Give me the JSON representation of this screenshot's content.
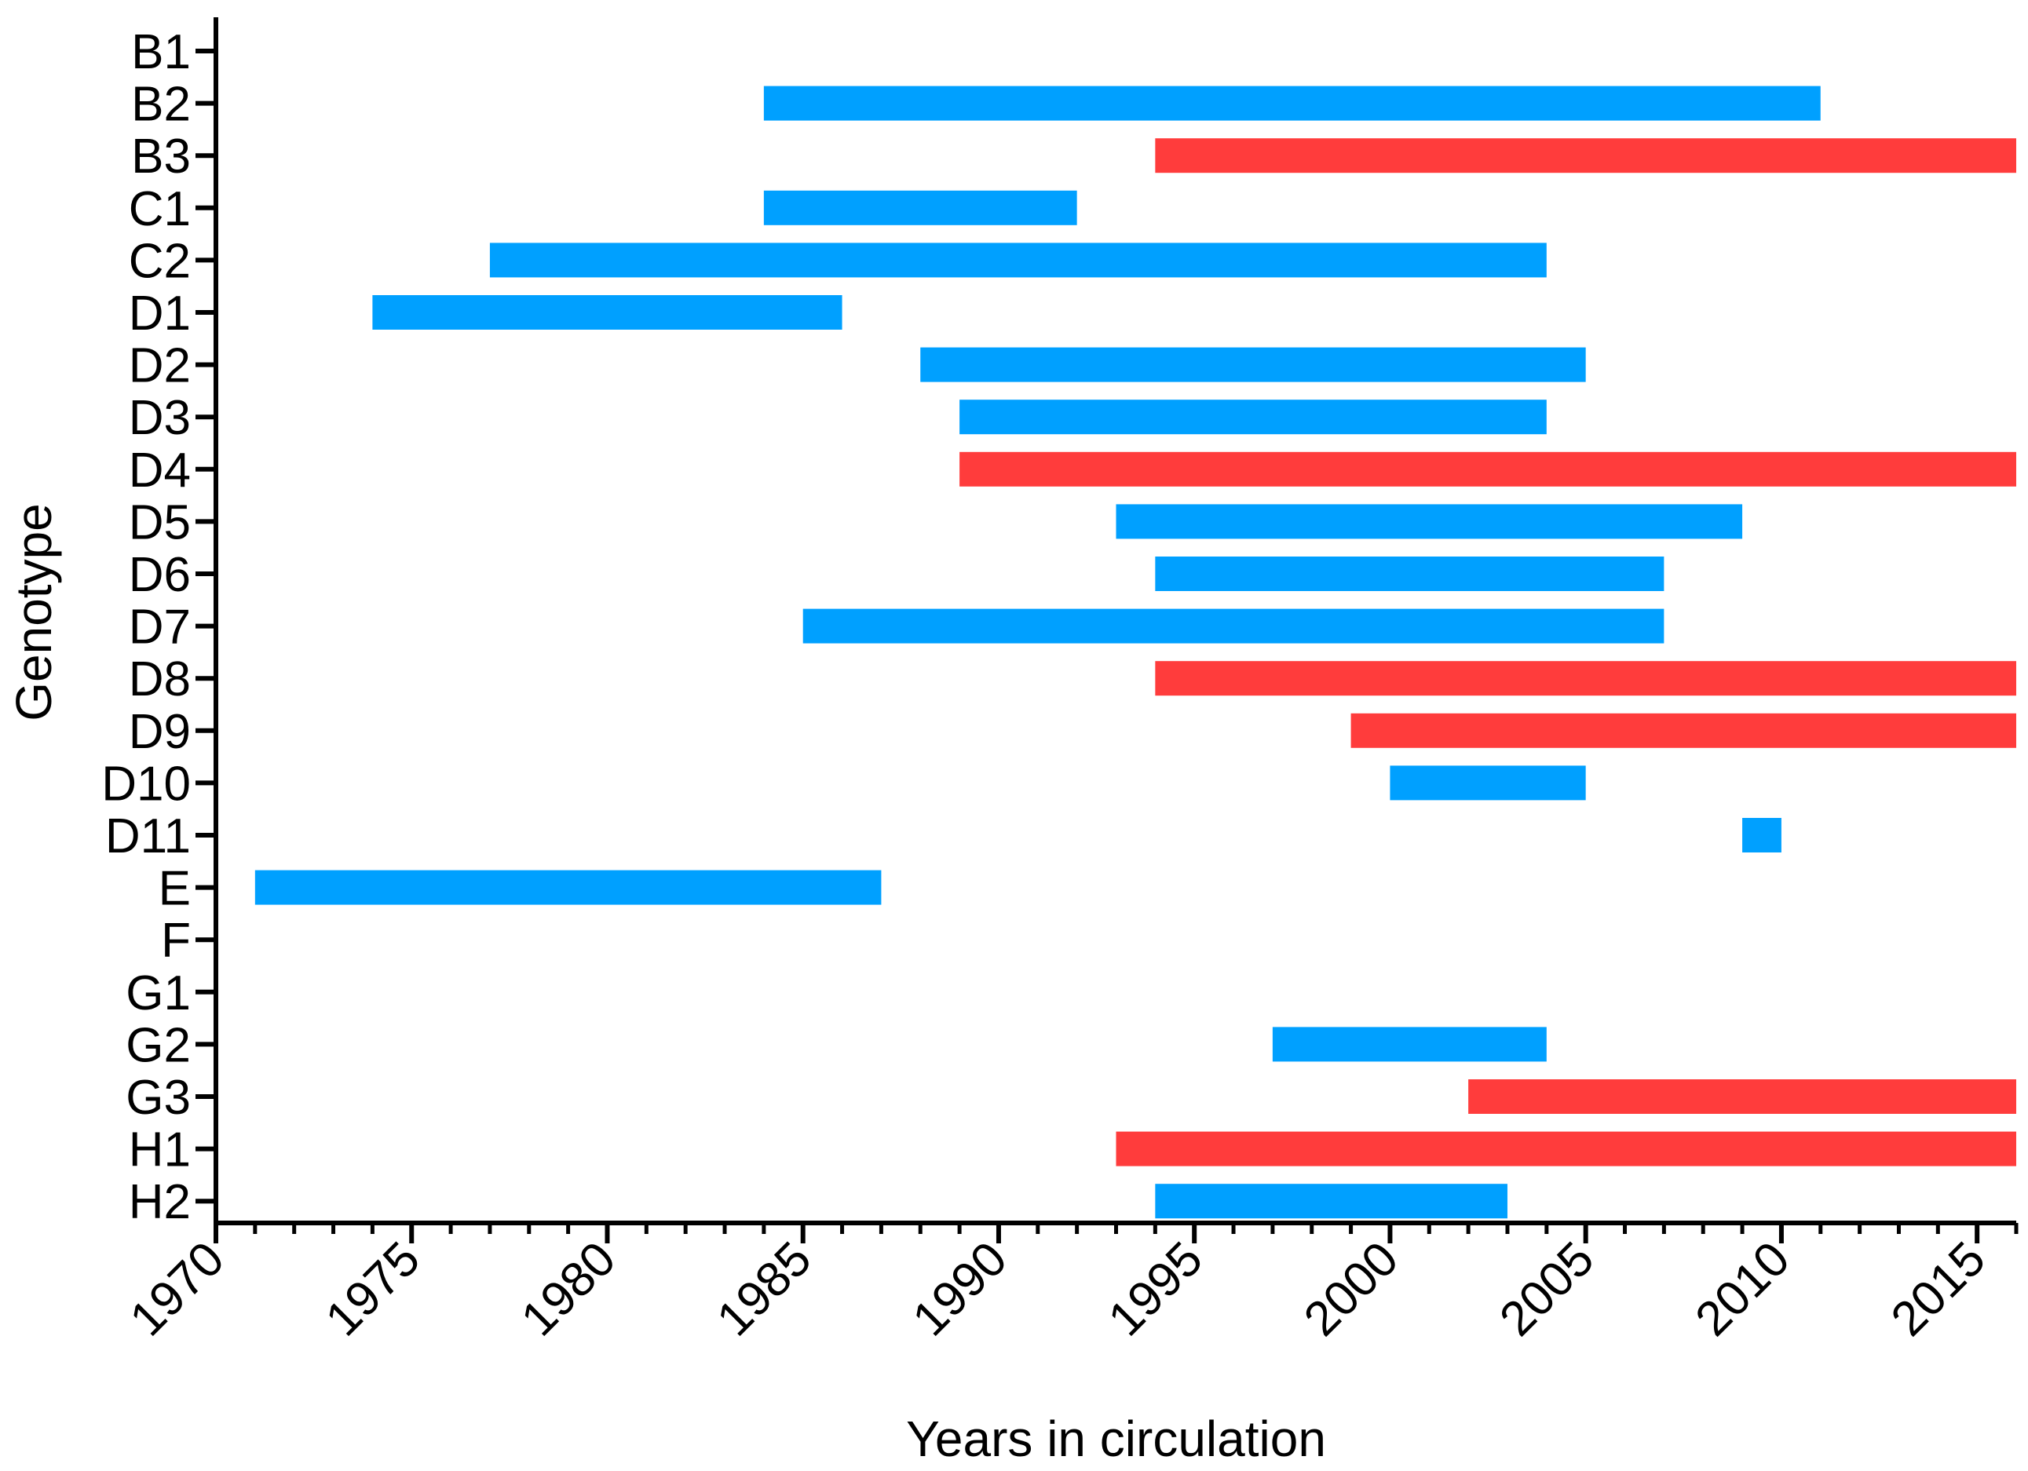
{
  "chart_data": {
    "type": "bar",
    "orientation": "horizontal",
    "subtype": "range",
    "title": "",
    "xlabel": "Years in circulation",
    "ylabel": "Genotype",
    "xlim": [
      1970,
      2016
    ],
    "xticks": [
      "1970",
      "1975",
      "1980",
      "1985",
      "1990",
      "1995",
      "2000",
      "2005",
      "2010",
      "2015"
    ],
    "grid": false,
    "colors": {
      "blue": "#00A0FF",
      "red": "#FF3C3C",
      "axis": "#000000"
    },
    "categories": [
      "B1",
      "B2",
      "B3",
      "C1",
      "C2",
      "D1",
      "D2",
      "D3",
      "D4",
      "D5",
      "D6",
      "D7",
      "D8",
      "D9",
      "D10",
      "D11",
      "E",
      "F",
      "G1",
      "G2",
      "G3",
      "H1",
      "H2"
    ],
    "ranges": [
      {
        "genotype": "B1",
        "start": null,
        "end": null,
        "color": "none"
      },
      {
        "genotype": "B2",
        "start": 1984,
        "end": 2011,
        "color": "blue"
      },
      {
        "genotype": "B3",
        "start": 1994,
        "end": 2016,
        "color": "red"
      },
      {
        "genotype": "C1",
        "start": 1984,
        "end": 1992,
        "color": "blue"
      },
      {
        "genotype": "C2",
        "start": 1977,
        "end": 2004,
        "color": "blue"
      },
      {
        "genotype": "D1",
        "start": 1974,
        "end": 1986,
        "color": "blue"
      },
      {
        "genotype": "D2",
        "start": 1988,
        "end": 2005,
        "color": "blue"
      },
      {
        "genotype": "D3",
        "start": 1989,
        "end": 2004,
        "color": "blue"
      },
      {
        "genotype": "D4",
        "start": 1989,
        "end": 2016,
        "color": "red"
      },
      {
        "genotype": "D5",
        "start": 1993,
        "end": 2009,
        "color": "blue"
      },
      {
        "genotype": "D6",
        "start": 1994,
        "end": 2007,
        "color": "blue"
      },
      {
        "genotype": "D7",
        "start": 1985,
        "end": 2007,
        "color": "blue"
      },
      {
        "genotype": "D8",
        "start": 1994,
        "end": 2016,
        "color": "red"
      },
      {
        "genotype": "D9",
        "start": 1999,
        "end": 2016,
        "color": "red"
      },
      {
        "genotype": "D10",
        "start": 2000,
        "end": 2005,
        "color": "blue"
      },
      {
        "genotype": "D11",
        "start": 2009,
        "end": 2010,
        "color": "blue"
      },
      {
        "genotype": "E",
        "start": 1971,
        "end": 1987,
        "color": "blue"
      },
      {
        "genotype": "F",
        "start": null,
        "end": null,
        "color": "none"
      },
      {
        "genotype": "G1",
        "start": null,
        "end": null,
        "color": "none"
      },
      {
        "genotype": "G2",
        "start": 1997,
        "end": 2004,
        "color": "blue"
      },
      {
        "genotype": "G3",
        "start": 2002,
        "end": 2016,
        "color": "red"
      },
      {
        "genotype": "H1",
        "start": 1993,
        "end": 2016,
        "color": "red"
      },
      {
        "genotype": "H2",
        "start": 1994,
        "end": 2003,
        "color": "blue"
      }
    ]
  }
}
